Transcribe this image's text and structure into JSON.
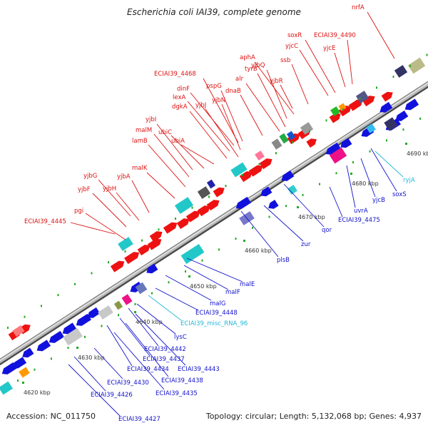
{
  "title": "Escherichia coli IAI39, complete genome",
  "footer": {
    "accession": "Accession: NC_011750",
    "summary": "Topology: circular; Length: 5,132,068 bp; Genes: 4,937"
  },
  "colors": {
    "forward_label": "#dd1111",
    "reverse_label": "#1111cc",
    "misc_rna_label": "#22b8d8",
    "forward_gene": "#ee1111",
    "reverse_gene": "#1111dd",
    "tick": "#22aa22",
    "backbone": "#9a9a9a"
  },
  "ticks": [
    "4620 kbp",
    "4630 kbp",
    "4640 kbp",
    "4650 kbp",
    "4660 kbp",
    "4670 kbp",
    "4680 kbp",
    "4690 kbp"
  ],
  "forward_labels": [
    "ECIAI39_4445",
    "pgi",
    "yjbF",
    "yjbG",
    "yjbH",
    "yjbA",
    "malK",
    "lamB",
    "malM",
    "yjbI",
    "ubiC",
    "ubiA",
    "dgkA",
    "lexA",
    "dinF",
    "yjbJ",
    "yjbN",
    "pspG",
    "ECIAI39_4468",
    "dnaB",
    "alr",
    "tyrB",
    "yjbQ",
    "yjbR",
    "aphA",
    "ssb",
    "yjcC",
    "soxR",
    "ECIAI39_4490",
    "yjcE",
    "nrfA"
  ],
  "reverse_labels": [
    "ECIAI39_4427",
    "ECIAI39_4426",
    "ECIAI39_4430",
    "ECIAI39_4435",
    "ECIAI39_4434",
    "ECIAI39_4438",
    "ECIAI39_4437",
    "ECIAI39_4443",
    "ECIAI39_4442",
    "lysC",
    "ECIAI39_4448",
    "malG",
    "malF",
    "malE",
    "plsB",
    "zur",
    "qor",
    "ECIAI39_4475",
    "uvrA",
    "yjcB",
    "soxS"
  ],
  "misc_labels": [
    "ECIAI39_misc_RNA_96",
    "ryjA"
  ]
}
